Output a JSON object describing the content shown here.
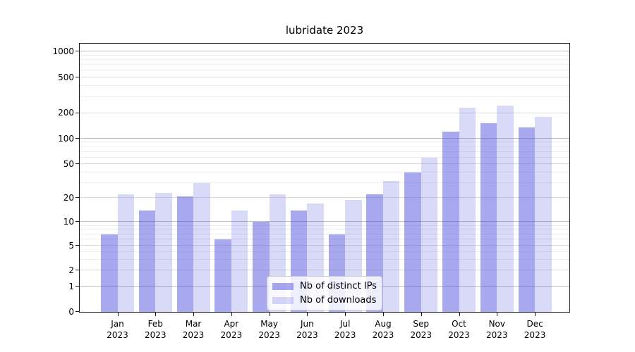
{
  "title": "lubridate 2023",
  "chart_data": {
    "type": "bar",
    "title": "lubridate 2023",
    "months": [
      "Jan",
      "Feb",
      "Mar",
      "Apr",
      "May",
      "Jun",
      "Jul",
      "Aug",
      "Sep",
      "Oct",
      "Nov",
      "Dec"
    ],
    "year": "2023",
    "series": [
      {
        "name": "Nb of distinct IPs",
        "color": "rgba(82, 82, 222, 0.5)",
        "values": [
          7,
          14,
          21,
          6,
          10,
          14,
          7,
          22,
          40,
          120,
          150,
          135
        ]
      },
      {
        "name": "Nb of downloads",
        "color": "rgba(82, 82, 222, 0.22)",
        "values": [
          22,
          23,
          30,
          14,
          22,
          17,
          19,
          32,
          60,
          230,
          240,
          180
        ]
      }
    ],
    "yticks": [
      0,
      1,
      2,
      5,
      10,
      20,
      50,
      100,
      200,
      500,
      1000
    ],
    "minor_yticks": [
      3,
      4,
      6,
      7,
      8,
      9,
      30,
      40,
      60,
      70,
      80,
      90,
      300,
      400,
      600,
      700,
      800,
      900
    ],
    "scale": "symlog (linear 0-1, logarithmic above)",
    "ylim": [
      0,
      1250
    ],
    "grid": true,
    "legend": {
      "position": "lower center",
      "entries": [
        "Nb of distinct IPs",
        "Nb of downloads"
      ]
    },
    "colors": {
      "grid_power10": "#bdbdbd",
      "grid_labeled": "#dadada",
      "grid_minor": "#eeeeee",
      "axis": "#1a1a1a",
      "legend_border": "#cccccc",
      "text": "#000000"
    }
  }
}
